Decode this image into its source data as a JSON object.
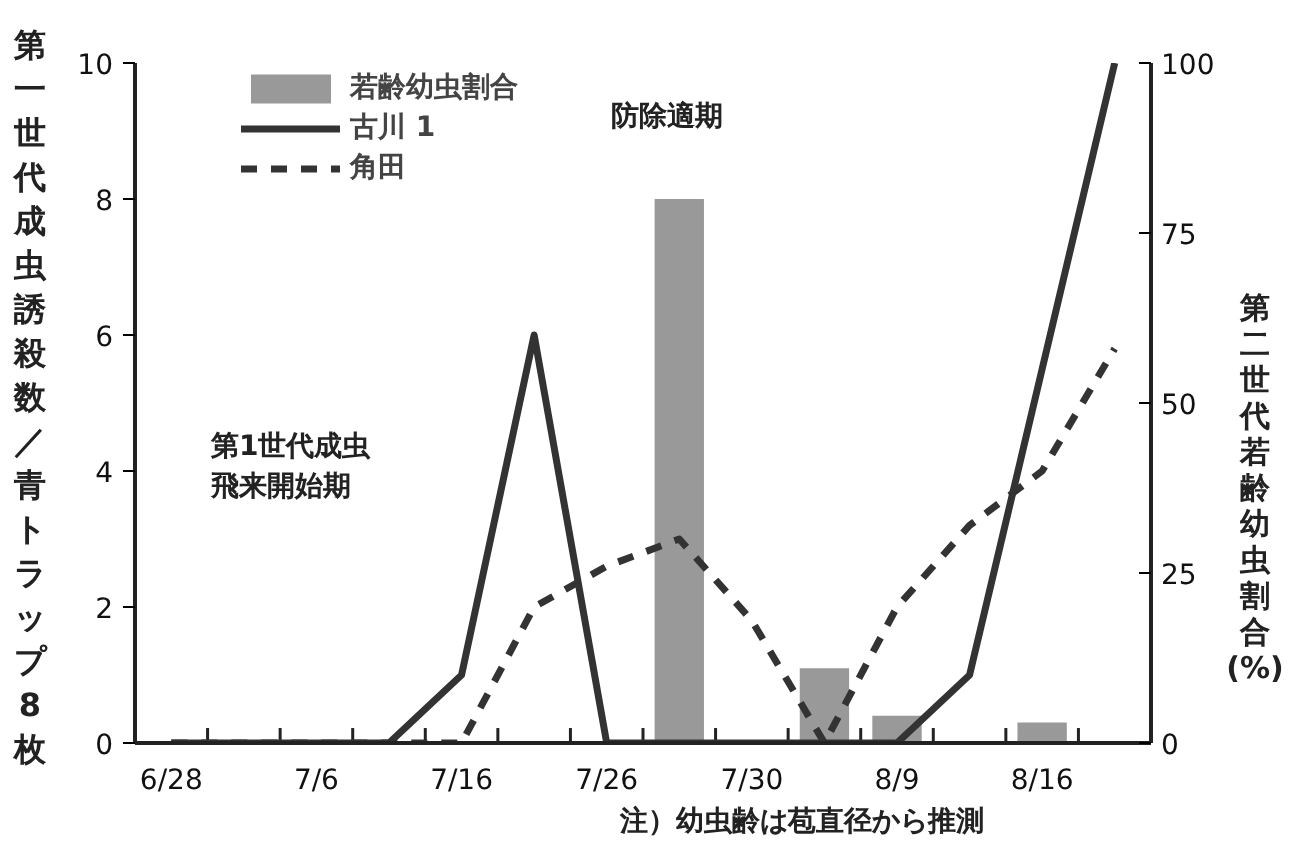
{
  "chart_data": {
    "type": "bar",
    "ylabel": "第一世代成虫誘殺数／青トラップ8枚",
    "y2label": "第二世代若齢幼虫割合(%)",
    "categories": [
      "6/28",
      null,
      "7/6",
      null,
      "7/16",
      null,
      "7/26",
      null,
      "7/30",
      null,
      "8/9",
      null,
      "8/16",
      null
    ],
    "series": [
      {
        "name": "若齢幼虫割合",
        "axis": "y2",
        "color": "#999999",
        "values": [
          null,
          null,
          null,
          null,
          null,
          null,
          null,
          80,
          null,
          11,
          4,
          null,
          3,
          null
        ]
      },
      {
        "name": "古川 1",
        "type": "line",
        "line_style": "solid",
        "color": "#333333",
        "values": [
          0,
          0,
          0,
          0,
          1,
          6,
          0,
          0,
          0,
          0,
          0,
          1,
          5.5,
          10
        ]
      },
      {
        "name": "角田",
        "type": "line",
        "line_style": "dashed",
        "color": "#333333",
        "values": [
          0,
          0,
          0,
          0,
          0,
          2,
          2.6,
          3,
          1.8,
          0,
          2,
          3.2,
          4,
          5.8
        ]
      }
    ],
    "ylim": [
      0,
      10
    ],
    "yticks": [
      0,
      2,
      4,
      6,
      8,
      10
    ],
    "y2lim": [
      0,
      100
    ],
    "y2ticks": [
      0,
      25,
      50,
      75,
      100
    ],
    "legend": "top left",
    "grid": false,
    "annotations": [
      "防除適期",
      "第1世代成虫",
      "飛来開始期",
      "注）幼虫齢は苞直径から推測"
    ]
  }
}
